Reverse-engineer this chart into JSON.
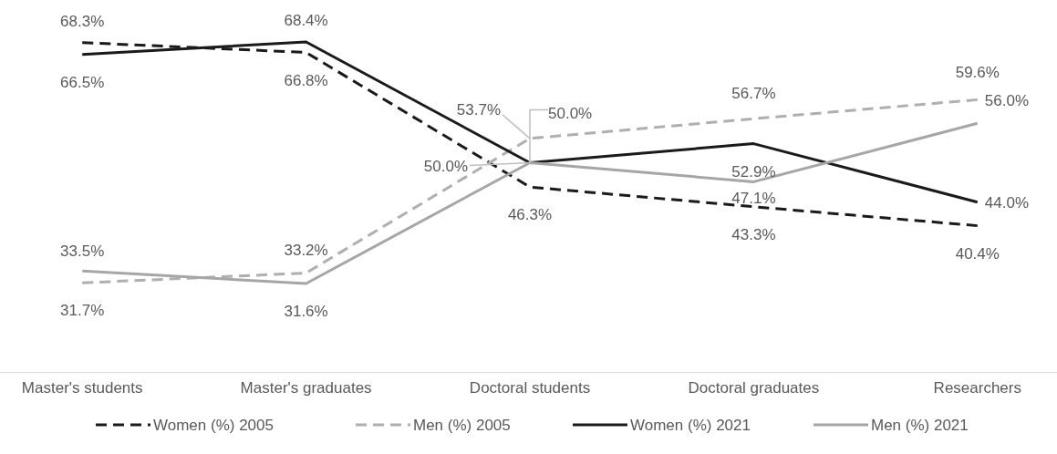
{
  "chart_data": {
    "type": "line",
    "categories": [
      "Master's students",
      "Master's graduates",
      "Doctoral students",
      "Doctoral graduates",
      "Researchers"
    ],
    "legend": "bottom",
    "marker": "none",
    "series": [
      {
        "name": "Women (%) 2005",
        "color": "#1a1a1a",
        "line_style": "dashed",
        "values": [
          68.3,
          66.8,
          46.3,
          43.3,
          40.4
        ],
        "value_labels": [
          "68.3%",
          "66.8%",
          "46.3%",
          "43.3%",
          "40.4%"
        ]
      },
      {
        "name": "Men (%) 2005",
        "color": "#afafaf",
        "line_style": "dashed",
        "values": [
          31.7,
          33.2,
          53.7,
          56.7,
          59.6
        ],
        "value_labels": [
          "31.7%",
          "33.2%",
          "53.7%",
          "56.7%",
          "59.6%"
        ]
      },
      {
        "name": "Women (%) 2021",
        "color": "#1a1a1a",
        "line_style": "solid",
        "values": [
          66.5,
          68.4,
          50.0,
          52.9,
          44.0
        ],
        "value_labels": [
          "66.5%",
          "68.4%",
          "50.0%",
          "52.9%",
          "44.0%"
        ]
      },
      {
        "name": "Men (%) 2021",
        "color": "#a6a6a6",
        "line_style": "solid",
        "values": [
          33.5,
          31.6,
          50.0,
          47.1,
          56.0
        ],
        "value_labels": [
          "33.5%",
          "31.6%",
          "50.0%",
          "47.1%",
          "56.0%"
        ]
      }
    ]
  }
}
